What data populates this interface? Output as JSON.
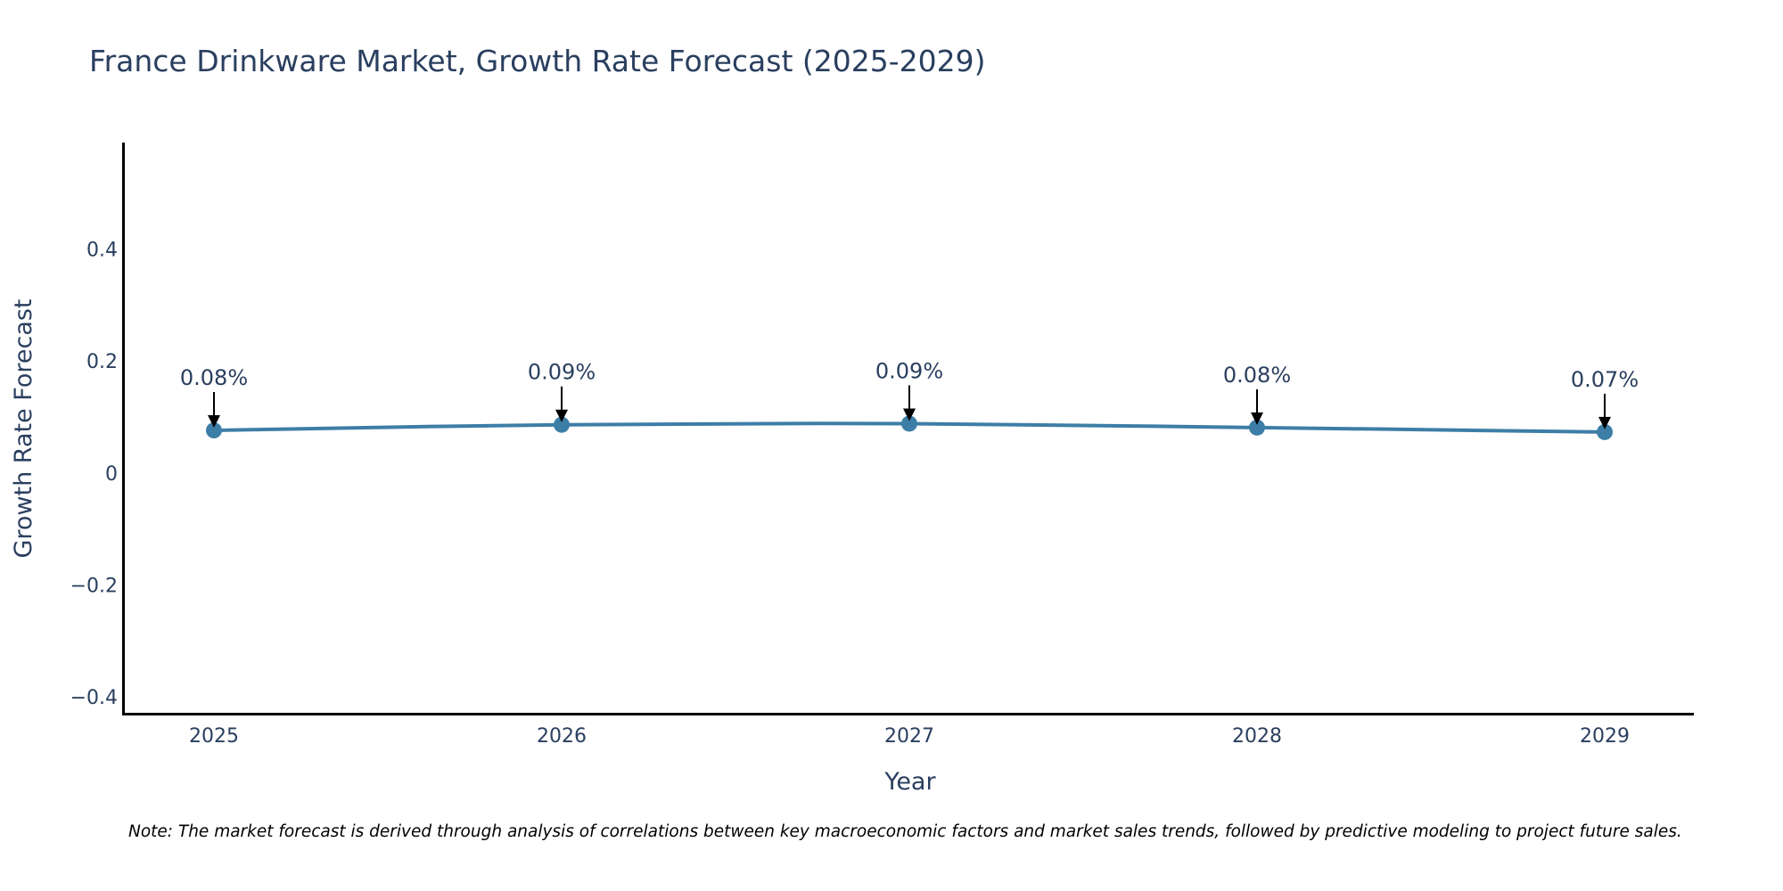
{
  "chart_data": {
    "type": "line",
    "title": "France Drinkware Market, Growth Rate Forecast (2025-2029)",
    "xlabel": "Year",
    "ylabel": "Growth Rate Forecast",
    "categories": [
      "2025",
      "2026",
      "2027",
      "2028",
      "2029"
    ],
    "values": [
      0.076,
      0.086,
      0.088,
      0.081,
      0.073
    ],
    "data_labels": [
      "0.08%",
      "0.09%",
      "0.09%",
      "0.08%",
      "0.07%"
    ],
    "ylim": [
      -0.43,
      0.59
    ],
    "yticks": [
      -0.4,
      -0.2,
      0,
      0.2,
      0.4
    ],
    "ytick_labels": [
      "−0.4",
      "−0.2",
      "0",
      "0.2",
      "0.4"
    ],
    "grid": false,
    "legend": "none",
    "line_color": "#3d7ea6",
    "note": "Note: The market forecast is derived through analysis of correlations between key macroeconomic factors and market sales trends, followed by predictive modeling to project future sales."
  }
}
